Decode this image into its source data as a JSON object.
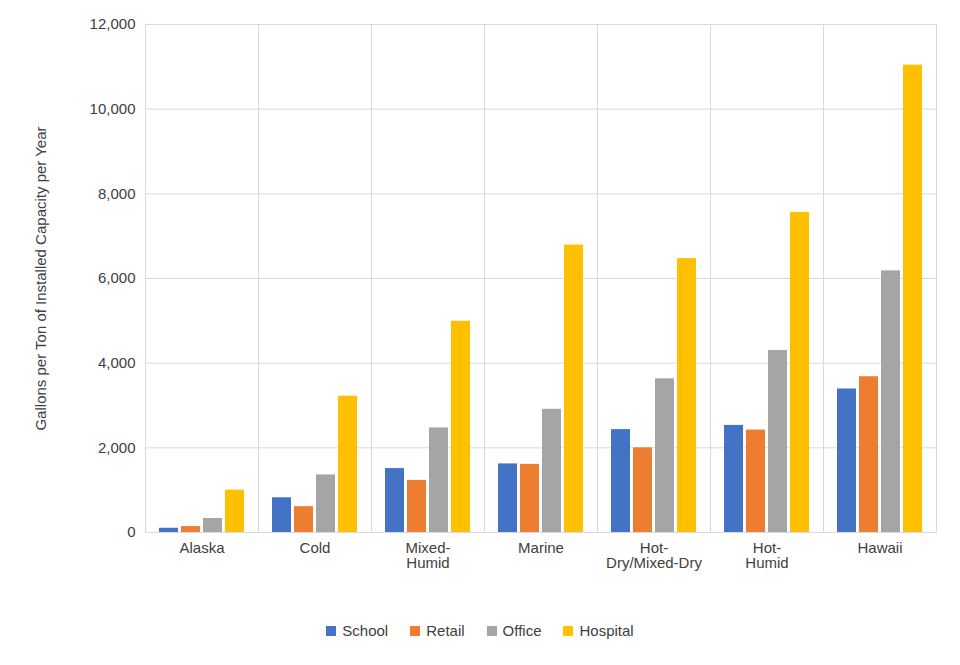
{
  "chart_data": {
    "type": "bar",
    "ylabel": "Gallons per Ton of Installed Capacity per Year",
    "categories": [
      "Alaska",
      "Cold",
      "Mixed-Humid",
      "Marine",
      "Hot-Dry/Mixed-Dry",
      "Hot-Humid",
      "Hawaii"
    ],
    "series": [
      {
        "name": "School",
        "color": "#4472c4",
        "values": [
          100,
          820,
          1510,
          1620,
          2430,
          2530,
          3390
        ]
      },
      {
        "name": "Retail",
        "color": "#ed7d31",
        "values": [
          140,
          610,
          1230,
          1610,
          2000,
          2420,
          3680
        ]
      },
      {
        "name": "Office",
        "color": "#a5a5a5",
        "values": [
          330,
          1360,
          2470,
          2910,
          3630,
          4300,
          6180
        ]
      },
      {
        "name": "Hospital",
        "color": "#ffc000",
        "values": [
          1000,
          3220,
          4990,
          6790,
          6470,
          7560,
          11040
        ]
      }
    ],
    "ylim": [
      0,
      12000
    ],
    "yticks": [
      0,
      {
        "value": 2000,
        "label": "2,000"
      },
      {
        "value": 4000,
        "label": "4,000"
      },
      {
        "value": 6000,
        "label": "6,000"
      },
      {
        "value": 8000,
        "label": "8,000"
      },
      {
        "value": 10000,
        "label": "10,000"
      },
      {
        "value": 12000,
        "label": "12,000"
      }
    ],
    "grid": true,
    "legend": "bottom"
  }
}
